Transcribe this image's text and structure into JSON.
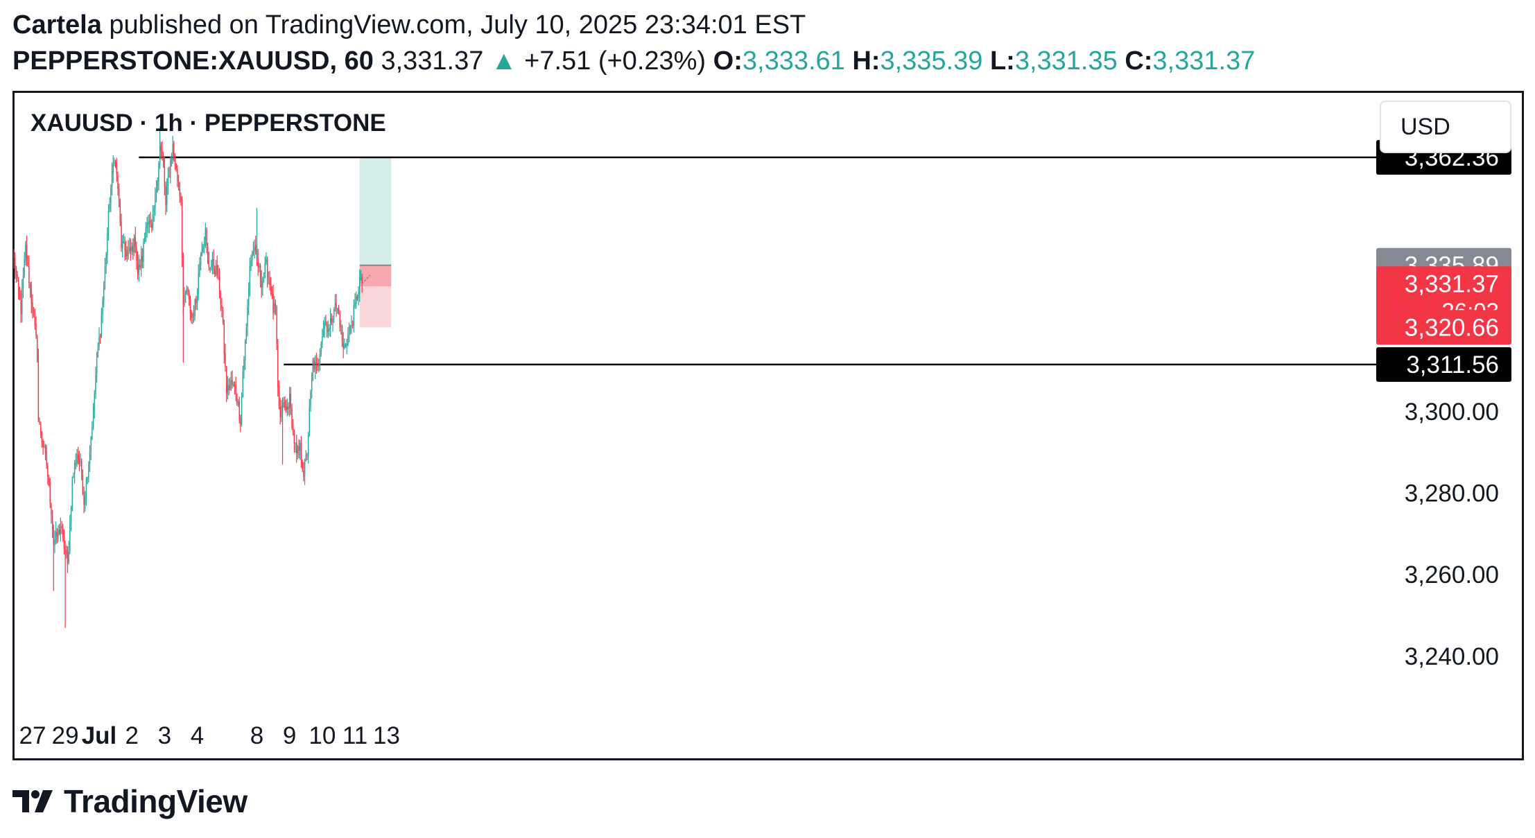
{
  "header": {
    "author": "Cartela",
    "published": " published on TradingView.com, July 10, 2025 23:34:01 EST",
    "symbol": "PEPPERSTONE:XAUUSD, 60",
    "last": "3,331.37",
    "change": "+7.51 (+0.23%)",
    "o_label": "O:",
    "o_value": "3,333.61",
    "h_label": "H:",
    "h_value": "3,335.39",
    "l_label": "L:",
    "l_value": "3,331.35",
    "c_label": "C:",
    "c_value": "3,331.37"
  },
  "chart_title": "XAUUSD · 1h · PEPPERSTONE",
  "currency_button": "USD",
  "footer": {
    "brand": "TradingView"
  },
  "colors": {
    "up": "#26a69a",
    "down": "#f23645",
    "target_zone": "#d3ede8",
    "stop_zone": "#fbd7da",
    "stop_zone_dark": "#f7a8ae",
    "entry_label_bg": "#868993",
    "current_label_bg": "#f23645",
    "line_label_bg": "#000000"
  },
  "chart_data": {
    "type": "candlestick",
    "y_range": [
      3225,
      3378
    ],
    "y_ticks": [
      {
        "value": 3300,
        "label": "3,300.00"
      },
      {
        "value": 3280,
        "label": "3,280.00"
      },
      {
        "value": 3260,
        "label": "3,260.00"
      },
      {
        "value": 3240,
        "label": "3,240.00"
      }
    ],
    "x_ticks": [
      {
        "label": "27",
        "bar": 16,
        "bold": false
      },
      {
        "label": "29",
        "bar": 44,
        "bold": false
      },
      {
        "label": "Jul",
        "bar": 73,
        "bold": true
      },
      {
        "label": "2",
        "bar": 101,
        "bold": false
      },
      {
        "label": "3",
        "bar": 129,
        "bold": false
      },
      {
        "label": "4",
        "bar": 157,
        "bold": false
      },
      {
        "label": "8",
        "bar": 208,
        "bold": false
      },
      {
        "label": "9",
        "bar": 236,
        "bold": false
      },
      {
        "label": "10",
        "bar": 264,
        "bold": false
      },
      {
        "label": "11",
        "bar": 292,
        "bold": false
      },
      {
        "label": "13",
        "bar": 319,
        "bold": false
      }
    ],
    "bar_count": 330,
    "anchors": [
      [
        0,
        3337
      ],
      [
        6,
        3325
      ],
      [
        10,
        3340
      ],
      [
        16,
        3325
      ],
      [
        20,
        3315
      ],
      [
        21,
        3298
      ],
      [
        28,
        3287
      ],
      [
        32,
        3276
      ],
      [
        34,
        3268
      ],
      [
        38,
        3270
      ],
      [
        40,
        3272
      ],
      [
        42,
        3268
      ],
      [
        44,
        3266
      ],
      [
        46,
        3262
      ],
      [
        50,
        3283
      ],
      [
        54,
        3290
      ],
      [
        58,
        3285
      ],
      [
        60,
        3278
      ],
      [
        64,
        3288
      ],
      [
        68,
        3300
      ],
      [
        71,
        3313
      ],
      [
        74,
        3320
      ],
      [
        78,
        3335
      ],
      [
        82,
        3352
      ],
      [
        86,
        3363
      ],
      [
        89,
        3355
      ],
      [
        92,
        3341
      ],
      [
        96,
        3339
      ],
      [
        100,
        3339
      ],
      [
        104,
        3342
      ],
      [
        106,
        3334
      ],
      [
        110,
        3338
      ],
      [
        114,
        3348
      ],
      [
        118,
        3344
      ],
      [
        122,
        3355
      ],
      [
        125,
        3365
      ],
      [
        128,
        3360
      ],
      [
        130,
        3350
      ],
      [
        132,
        3357
      ],
      [
        136,
        3365
      ],
      [
        140,
        3357
      ],
      [
        143,
        3352
      ],
      [
        145,
        3326
      ],
      [
        148,
        3330
      ],
      [
        152,
        3323
      ],
      [
        156,
        3327
      ],
      [
        160,
        3340
      ],
      [
        164,
        3344
      ],
      [
        166,
        3336
      ],
      [
        170,
        3336
      ],
      [
        174,
        3334
      ],
      [
        178,
        3325
      ],
      [
        182,
        3305
      ],
      [
        186,
        3307
      ],
      [
        190,
        3305
      ],
      [
        194,
        3298
      ],
      [
        196,
        3310
      ],
      [
        199,
        3320
      ],
      [
        202,
        3336
      ],
      [
        205,
        3340
      ],
      [
        208,
        3337
      ],
      [
        212,
        3332
      ],
      [
        216,
        3336
      ],
      [
        220,
        3330
      ],
      [
        222,
        3325
      ],
      [
        224,
        3325
      ],
      [
        226,
        3305
      ],
      [
        228,
        3298
      ],
      [
        230,
        3302
      ],
      [
        233,
        3300
      ],
      [
        236,
        3303
      ],
      [
        239,
        3295
      ],
      [
        242,
        3289
      ],
      [
        245,
        3291
      ],
      [
        248,
        3285
      ],
      [
        251,
        3290
      ],
      [
        253,
        3300
      ],
      [
        256,
        3312
      ],
      [
        260,
        3310
      ],
      [
        263,
        3318
      ],
      [
        266,
        3322
      ],
      [
        270,
        3320
      ],
      [
        274,
        3326
      ],
      [
        278,
        3324
      ],
      [
        280,
        3320
      ],
      [
        282,
        3315
      ],
      [
        285,
        3318
      ],
      [
        288,
        3320
      ],
      [
        290,
        3323
      ],
      [
        293,
        3327
      ],
      [
        296,
        3332
      ],
      [
        298,
        3331
      ]
    ],
    "horizontal_lines": [
      {
        "value": 3362.36,
        "label": "3,362.36",
        "from_bar": 107
      },
      {
        "value": 3311.56,
        "label": "3,311.56",
        "from_bar": 231
      }
    ],
    "position": {
      "type": "long",
      "entry": 3335.89,
      "target": 3362.36,
      "stop": 3320.66,
      "from_bar": 296,
      "to_bar": 323
    },
    "price_labels": [
      {
        "value": 3335.89,
        "label": "3,335.89",
        "kind": "entry"
      },
      {
        "value": 3331.37,
        "label": "3,331.37",
        "kind": "current",
        "countdown": "26:03"
      },
      {
        "value": 3320.66,
        "label": "3,320.66",
        "kind": "stop"
      }
    ]
  }
}
